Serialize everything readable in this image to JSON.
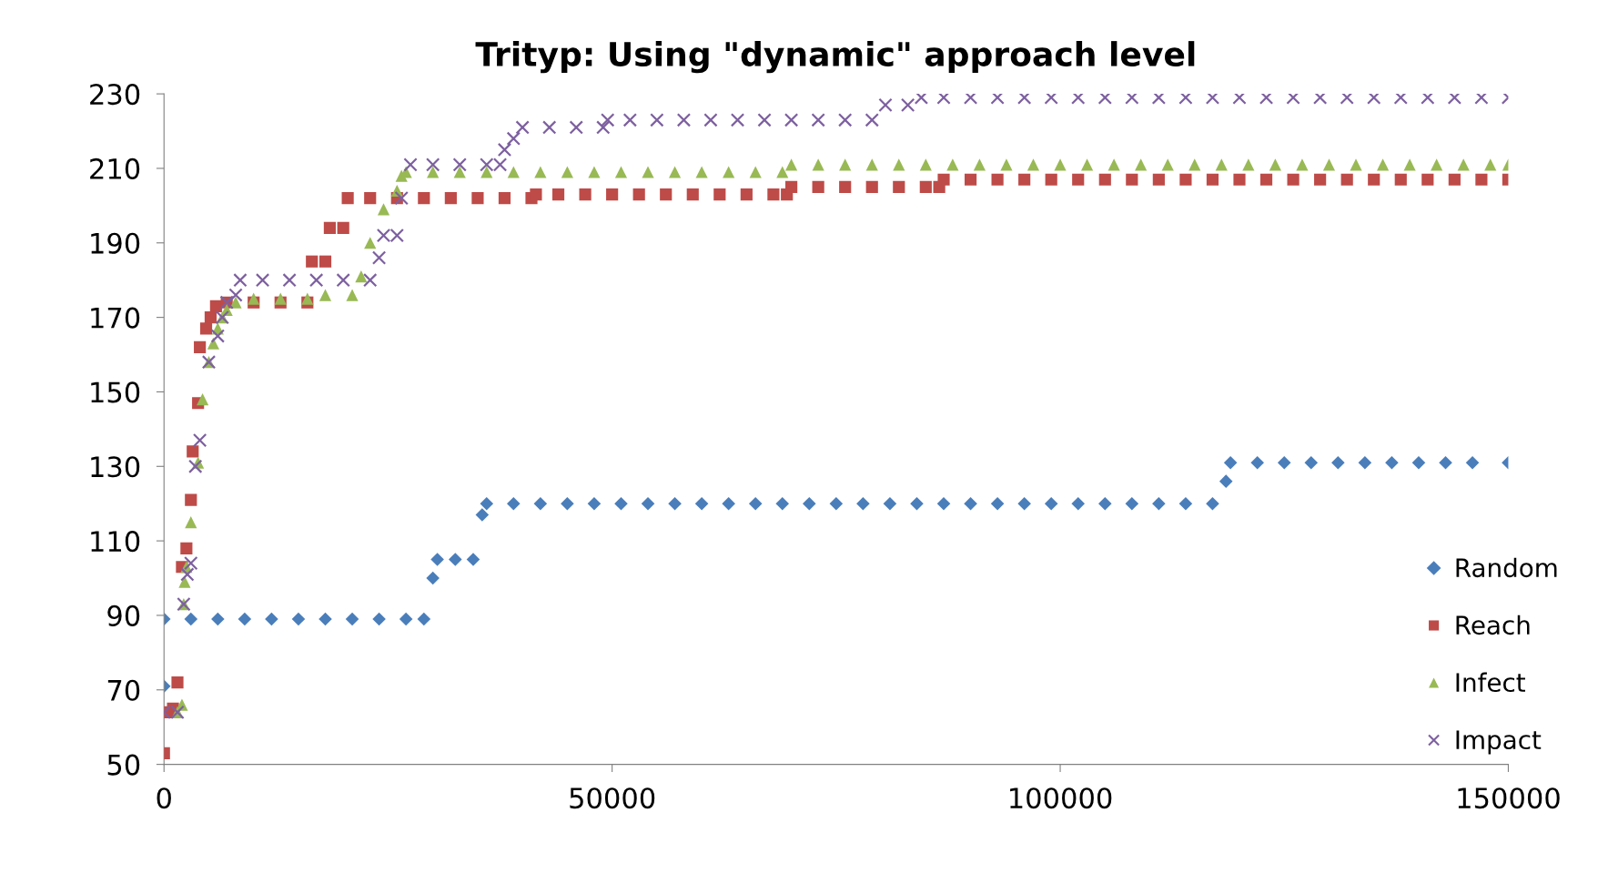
{
  "chart_data": {
    "type": "scatter",
    "title": "Trityp: Using \"dynamic\" approach level",
    "xlim": [
      0,
      150000
    ],
    "xticks": [
      0,
      50000,
      100000,
      150000
    ],
    "ylim": [
      50,
      230
    ],
    "yticks": [
      50,
      70,
      90,
      110,
      130,
      150,
      170,
      190,
      210,
      230
    ],
    "grid": false,
    "legend": "bottom right",
    "series": [
      {
        "name": "Random",
        "color": "#4a7ebb",
        "marker": "diamond",
        "x": [
          0,
          0,
          3000,
          6000,
          9000,
          12000,
          15000,
          18000,
          21000,
          24000,
          27000,
          29000,
          30000,
          30500,
          32500,
          34500,
          35500,
          36000,
          39000,
          42000,
          45000,
          48000,
          51000,
          54000,
          57000,
          60000,
          63000,
          66000,
          69000,
          72000,
          75000,
          78000,
          81000,
          84000,
          87000,
          90000,
          93000,
          96000,
          99000,
          102000,
          105000,
          108000,
          111000,
          114000,
          117000,
          118500,
          119000,
          122000,
          125000,
          128000,
          131000,
          134000,
          137000,
          140000,
          143000,
          146000,
          150000
        ],
        "values": [
          71,
          89,
          89,
          89,
          89,
          89,
          89,
          89,
          89,
          89,
          89,
          89,
          100,
          105,
          105,
          105,
          117,
          120,
          120,
          120,
          120,
          120,
          120,
          120,
          120,
          120,
          120,
          120,
          120,
          120,
          120,
          120,
          120,
          120,
          120,
          120,
          120,
          120,
          120,
          120,
          120,
          120,
          120,
          120,
          120,
          126,
          131,
          131,
          131,
          131,
          131,
          131,
          131,
          131,
          131,
          131,
          131
        ]
      },
      {
        "name": "Reach",
        "color": "#be4b48",
        "marker": "square",
        "x": [
          0,
          500,
          1000,
          1500,
          2000,
          2500,
          3000,
          3200,
          3800,
          4000,
          4700,
          5200,
          5800,
          7000,
          10000,
          13000,
          16000,
          16500,
          18000,
          18500,
          20000,
          20500,
          23000,
          26000,
          29000,
          32000,
          35000,
          38000,
          41000,
          41500,
          44000,
          47000,
          50000,
          53000,
          56000,
          59000,
          62000,
          65000,
          68000,
          69500,
          70000,
          73000,
          76000,
          79000,
          82000,
          85000,
          86500,
          87000,
          90000,
          93000,
          96000,
          99000,
          102000,
          105000,
          108000,
          111000,
          114000,
          117000,
          120000,
          123000,
          126000,
          129000,
          132000,
          135000,
          138000,
          141000,
          144000,
          147000,
          150000
        ],
        "values": [
          53,
          64,
          65,
          72,
          103,
          108,
          121,
          134,
          147,
          162,
          167,
          170,
          173,
          174,
          174,
          174,
          174,
          185,
          185,
          194,
          194,
          202,
          202,
          202,
          202,
          202,
          202,
          202,
          202,
          203,
          203,
          203,
          203,
          203,
          203,
          203,
          203,
          203,
          203,
          203,
          205,
          205,
          205,
          205,
          205,
          205,
          205,
          207,
          207,
          207,
          207,
          207,
          207,
          207,
          207,
          207,
          207,
          207,
          207,
          207,
          207,
          207,
          207,
          207,
          207,
          207,
          207,
          207,
          207
        ]
      },
      {
        "name": "Infect",
        "color": "#98b954",
        "marker": "triangle",
        "x": [
          1500,
          2000,
          2200,
          2300,
          2500,
          3000,
          3800,
          4300,
          5000,
          5500,
          6000,
          6500,
          7000,
          8000,
          10000,
          13000,
          16000,
          18000,
          21000,
          22000,
          23000,
          24500,
          26000,
          26500,
          27000,
          30000,
          33000,
          36000,
          39000,
          42000,
          45000,
          48000,
          51000,
          54000,
          57000,
          60000,
          63000,
          66000,
          69000,
          70000,
          73000,
          76000,
          79000,
          82000,
          85000,
          88000,
          91000,
          94000,
          97000,
          100000,
          103000,
          106000,
          109000,
          112000,
          115000,
          118000,
          121000,
          124000,
          127000,
          130000,
          133000,
          136000,
          139000,
          142000,
          145000,
          148000,
          150000
        ],
        "values": [
          64,
          66,
          93,
          99,
          103,
          115,
          131,
          148,
          158,
          163,
          167,
          170,
          172,
          174,
          175,
          175,
          175,
          176,
          176,
          181,
          190,
          199,
          204,
          208,
          209,
          209,
          209,
          209,
          209,
          209,
          209,
          209,
          209,
          209,
          209,
          209,
          209,
          209,
          209,
          211,
          211,
          211,
          211,
          211,
          211,
          211,
          211,
          211,
          211,
          211,
          211,
          211,
          211,
          211,
          211,
          211,
          211,
          211,
          211,
          211,
          211,
          211,
          211,
          211,
          211,
          211,
          211
        ]
      },
      {
        "name": "Impact",
        "color": "#7d60a0",
        "marker": "cross",
        "x": [
          0,
          1500,
          2200,
          2600,
          3000,
          3500,
          4000,
          5000,
          6000,
          6500,
          7000,
          8000,
          8500,
          11000,
          14000,
          17000,
          20000,
          23000,
          24000,
          24500,
          26000,
          26500,
          27500,
          30000,
          33000,
          36000,
          37500,
          38000,
          39000,
          40000,
          43000,
          46000,
          49000,
          49500,
          52000,
          55000,
          58000,
          61000,
          64000,
          67000,
          70000,
          73000,
          76000,
          79000,
          80500,
          83000,
          84500,
          87000,
          90000,
          93000,
          96000,
          99000,
          102000,
          105000,
          108000,
          111000,
          114000,
          117000,
          120000,
          123000,
          126000,
          129000,
          132000,
          135000,
          138000,
          141000,
          144000,
          147000,
          150000
        ],
        "values": [
          64,
          64,
          93,
          101,
          104,
          130,
          137,
          158,
          165,
          170,
          174,
          176,
          180,
          180,
          180,
          180,
          180,
          180,
          186,
          192,
          192,
          202,
          211,
          211,
          211,
          211,
          211,
          215,
          218,
          221,
          221,
          221,
          221,
          223,
          223,
          223,
          223,
          223,
          223,
          223,
          223,
          223,
          223,
          223,
          227,
          227,
          229,
          229,
          229,
          229,
          229,
          229,
          229,
          229,
          229,
          229,
          229,
          229,
          229,
          229,
          229,
          229,
          229,
          229,
          229,
          229,
          229,
          229,
          229
        ]
      }
    ]
  }
}
